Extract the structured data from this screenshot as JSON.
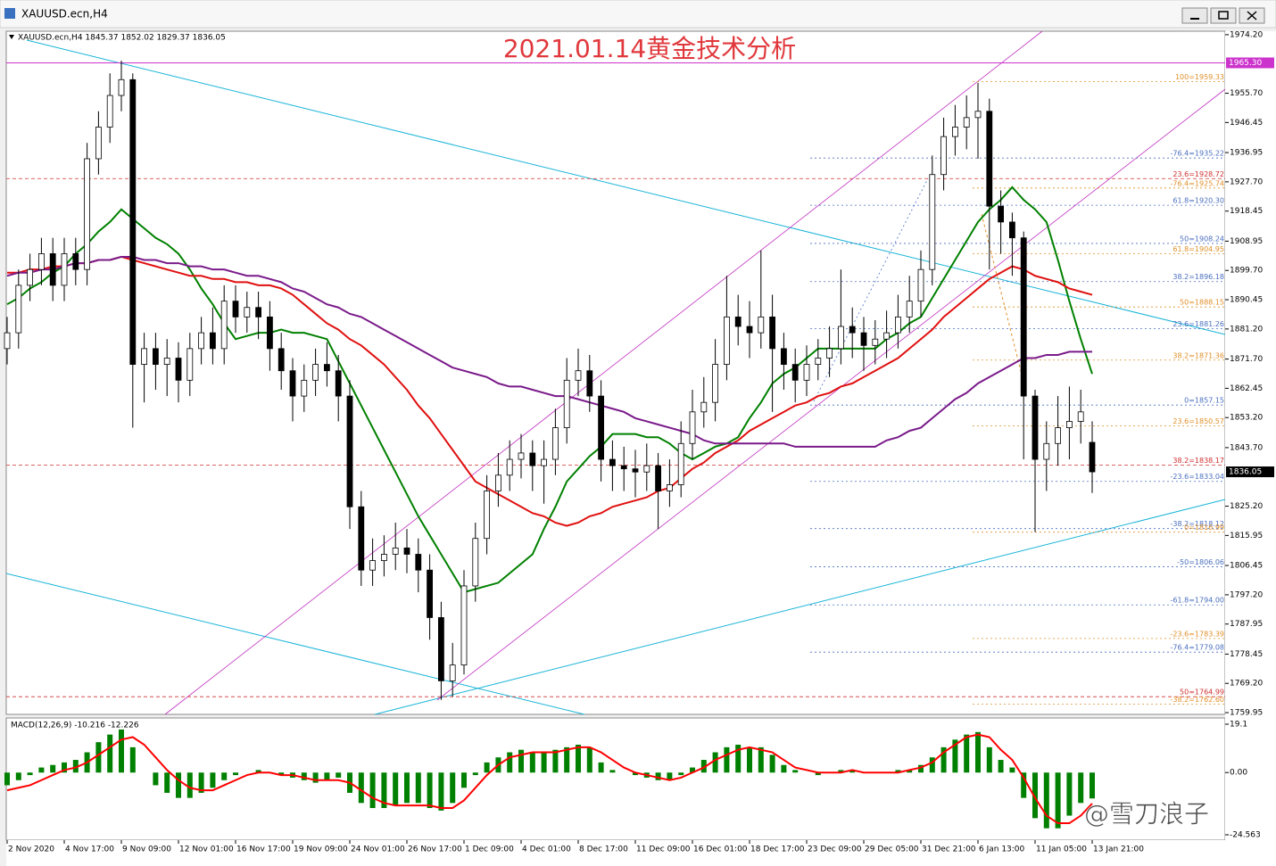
{
  "window": {
    "title": "XAUUSD.ecn,H4"
  },
  "watermark": "@雪刀浪子",
  "chart_data": [
    {
      "type": "candlestick",
      "title": "2021.01.14黄金技术分析",
      "subtitle": "XAUUSD.ecn,H4  1845.37 1852.02 1829.37 1836.05",
      "categories": [
        "2 Nov 2020",
        null,
        null,
        null,
        null,
        "4 Nov 17:00",
        null,
        null,
        null,
        null,
        "9 Nov 09:00",
        null,
        null,
        null,
        null,
        "12 Nov 01:00",
        null,
        null,
        null,
        null,
        "16 Nov 17:00",
        null,
        null,
        null,
        null,
        "19 Nov 09:00",
        null,
        null,
        null,
        null,
        "24 Nov 01:00",
        null,
        null,
        null,
        null,
        "26 Nov 17:00",
        null,
        null,
        null,
        null,
        "1 Dec 09:00",
        null,
        null,
        null,
        null,
        "4 Dec 01:00",
        null,
        null,
        null,
        null,
        "8 Dec 17:00",
        null,
        null,
        null,
        null,
        "11 Dec 09:00",
        null,
        null,
        null,
        null,
        "16 Dec 01:00",
        null,
        null,
        null,
        null,
        "18 Dec 17:00",
        null,
        null,
        null,
        null,
        "23 Dec 09:00",
        null,
        null,
        null,
        null,
        "29 Dec 05:00",
        null,
        null,
        null,
        null,
        "31 Dec 21:00",
        null,
        null,
        null,
        null,
        "6 Jan 13:00",
        null,
        null,
        null,
        null,
        "11 Jan 05:00",
        null,
        null,
        null,
        null,
        "13 Jan 21:00"
      ],
      "open": [
        1875,
        1880,
        1895,
        1900,
        1905,
        1895,
        1905,
        1900,
        1935,
        1945,
        1955,
        1960,
        1870,
        1875,
        1870,
        1872,
        1865,
        1875,
        1880,
        1875,
        1890,
        1885,
        1888,
        1885,
        1875,
        1868,
        1860,
        1865,
        1870,
        1868,
        1860,
        1825,
        1805,
        1808,
        1810,
        1812,
        1810,
        1805,
        1790,
        1770,
        1775,
        1800,
        1815,
        1830,
        1835,
        1840,
        1842,
        1838,
        1840,
        1850,
        1865,
        1868,
        1860,
        1840,
        1838,
        1837,
        1836,
        1838,
        1830,
        1832,
        1845,
        1855,
        1858,
        1870,
        1885,
        1882,
        1880,
        1885,
        1875,
        1870,
        1865,
        1870,
        1872,
        1875,
        1882,
        1880,
        1876,
        1878,
        1880,
        1885,
        1890,
        1900,
        1930,
        1942,
        1945,
        1948,
        1950,
        1920,
        1915,
        1910,
        1860,
        1840,
        1845,
        1850,
        1852,
        1845.37
      ],
      "high": [
        1885,
        1900,
        1905,
        1910,
        1910,
        1910,
        1910,
        1940,
        1950,
        1962,
        1966,
        1962,
        1880,
        1880,
        1878,
        1877,
        1880,
        1885,
        1888,
        1895,
        1895,
        1893,
        1893,
        1890,
        1880,
        1872,
        1870,
        1875,
        1877,
        1873,
        1865,
        1830,
        1815,
        1816,
        1820,
        1818,
        1815,
        1810,
        1795,
        1782,
        1805,
        1820,
        1835,
        1842,
        1846,
        1848,
        1846,
        1846,
        1856,
        1872,
        1875,
        1873,
        1865,
        1846,
        1844,
        1843,
        1845,
        1842,
        1840,
        1852,
        1862,
        1866,
        1878,
        1898,
        1892,
        1890,
        1906,
        1892,
        1880,
        1875,
        1876,
        1878,
        1882,
        1900,
        1888,
        1885,
        1884,
        1887,
        1892,
        1898,
        1906,
        1936,
        1948,
        1952,
        1955,
        1959,
        1954,
        1925,
        1918,
        1912,
        1862,
        1852,
        1860,
        1863,
        1862,
        1852.02
      ],
      "low": [
        1870,
        1875,
        1890,
        1895,
        1890,
        1890,
        1895,
        1895,
        1930,
        1940,
        1950,
        1850,
        1858,
        1862,
        1860,
        1858,
        1860,
        1870,
        1870,
        1870,
        1880,
        1880,
        1878,
        1868,
        1862,
        1852,
        1855,
        1860,
        1863,
        1852,
        1818,
        1800,
        1800,
        1803,
        1805,
        1804,
        1798,
        1783,
        1764,
        1765,
        1772,
        1795,
        1810,
        1825,
        1830,
        1834,
        1830,
        1826,
        1835,
        1845,
        1860,
        1855,
        1833,
        1830,
        1830,
        1828,
        1830,
        1818,
        1825,
        1828,
        1840,
        1850,
        1852,
        1865,
        1876,
        1872,
        1875,
        1855,
        1862,
        1858,
        1860,
        1865,
        1866,
        1870,
        1872,
        1868,
        1870,
        1872,
        1875,
        1880,
        1885,
        1895,
        1925,
        1936,
        1938,
        1935,
        1900,
        1905,
        1898,
        1840,
        1817,
        1830,
        1838,
        1840,
        1845,
        1829.37
      ],
      "close": [
        1880,
        1895,
        1900,
        1905,
        1895,
        1905,
        1900,
        1935,
        1945,
        1955,
        1960,
        1870,
        1875,
        1870,
        1872,
        1865,
        1875,
        1880,
        1875,
        1890,
        1885,
        1888,
        1885,
        1875,
        1868,
        1860,
        1865,
        1870,
        1868,
        1860,
        1825,
        1805,
        1808,
        1810,
        1812,
        1810,
        1805,
        1790,
        1770,
        1775,
        1800,
        1815,
        1830,
        1835,
        1840,
        1842,
        1838,
        1840,
        1850,
        1865,
        1868,
        1860,
        1840,
        1838,
        1837,
        1836,
        1838,
        1830,
        1832,
        1845,
        1855,
        1858,
        1870,
        1885,
        1882,
        1880,
        1885,
        1875,
        1870,
        1865,
        1870,
        1872,
        1875,
        1882,
        1880,
        1876,
        1878,
        1880,
        1885,
        1890,
        1900,
        1930,
        1942,
        1945,
        1948,
        1950,
        1920,
        1915,
        1910,
        1860,
        1840,
        1845,
        1850,
        1852,
        1855,
        1836.05
      ],
      "color_up": "#ffffff",
      "color_down": "#000000",
      "series": [
        {
          "color": "#008000",
          "values": [
            1889,
            1891,
            1894,
            1896,
            1899,
            1901,
            1905,
            1908,
            1912,
            1915,
            1919,
            1916,
            1913,
            1910,
            1908,
            1905,
            1900,
            1894,
            1889,
            1883,
            1878,
            1879,
            1880,
            1880,
            1881,
            1880,
            1880,
            1879,
            1878,
            1871,
            1864,
            1857,
            1850,
            1843,
            1836,
            1829,
            1822,
            1816,
            1810,
            1804,
            1798,
            1799,
            1800,
            1801,
            1804,
            1807,
            1810,
            1818,
            1825,
            1833,
            1837,
            1841,
            1844,
            1848,
            1848,
            1848,
            1847,
            1847,
            1845,
            1842,
            1840,
            1842,
            1844,
            1845,
            1847,
            1853,
            1858,
            1864,
            1867,
            1869,
            1872,
            1875,
            1875,
            1875,
            1875,
            1875,
            1875,
            1878,
            1880,
            1883,
            1885,
            1891,
            1897,
            1903,
            1909,
            1915,
            1919,
            1922,
            1926,
            1922,
            1919,
            1915,
            1903,
            1890,
            1878,
            1867
          ]
        },
        {
          "color": "#e01010",
          "values": [
            1899,
            1899,
            1900,
            1900,
            1901,
            1901,
            1902,
            1902,
            1903,
            1903,
            1904,
            1903,
            1902,
            1901,
            1900,
            1899,
            1898,
            1898,
            1897,
            1897,
            1896,
            1896,
            1895,
            1895,
            1894,
            1892,
            1889,
            1886,
            1883,
            1881,
            1878,
            1876,
            1873,
            1870,
            1866,
            1862,
            1857,
            1853,
            1848,
            1843,
            1838,
            1833,
            1831,
            1829,
            1827,
            1825,
            1823,
            1822,
            1820,
            1819,
            1820,
            1822,
            1823,
            1825,
            1826,
            1827,
            1828,
            1830,
            1831,
            1834,
            1837,
            1839,
            1842,
            1844,
            1846,
            1849,
            1851,
            1853,
            1855,
            1857,
            1858,
            1860,
            1861,
            1863,
            1864,
            1866,
            1868,
            1870,
            1872,
            1875,
            1878,
            1881,
            1885,
            1888,
            1891,
            1894,
            1897,
            1899,
            1901,
            1900,
            1898,
            1897,
            1896,
            1894,
            1893,
            1892
          ]
        },
        {
          "color": "#7a1a8a",
          "values": [
            1898,
            1899,
            1899,
            1900,
            1900,
            1901,
            1902,
            1902,
            1903,
            1903,
            1904,
            1904,
            1903,
            1903,
            1902,
            1902,
            1901,
            1901,
            1900,
            1900,
            1899,
            1898,
            1898,
            1897,
            1896,
            1894,
            1893,
            1891,
            1889,
            1888,
            1886,
            1885,
            1883,
            1881,
            1879,
            1877,
            1875,
            1873,
            1871,
            1869,
            1868,
            1867,
            1866,
            1864,
            1863,
            1863,
            1862,
            1861,
            1860,
            1860,
            1859,
            1858,
            1857,
            1856,
            1855,
            1853,
            1852,
            1851,
            1850,
            1849,
            1848,
            1846,
            1845,
            1845,
            1845,
            1845,
            1845,
            1845,
            1845,
            1844,
            1844,
            1844,
            1844,
            1844,
            1844,
            1844,
            1844,
            1846,
            1847,
            1849,
            1850,
            1853,
            1856,
            1859,
            1861,
            1864,
            1866,
            1868,
            1870,
            1872,
            1872,
            1873,
            1873,
            1874,
            1874,
            1874
          ]
        }
      ],
      "levels": [
        {
          "label": "100=1959.33",
          "value": 1959.33,
          "color": "#e0902a"
        },
        {
          "label": "-76.4=1935.22",
          "value": 1935.22,
          "color": "#4a6fc0"
        },
        {
          "label": "23.6=1928.72",
          "value": 1928.72,
          "color": "#d03030"
        },
        {
          "label": "-76.4=1925.74",
          "value": 1925.74,
          "color": "#e0902a"
        },
        {
          "label": "61.8=1920.30",
          "value": 1920.3,
          "color": "#4a6fc0"
        },
        {
          "label": "50=1908.24",
          "value": 1908.24,
          "color": "#4a6fc0"
        },
        {
          "label": "61.8=1904.95",
          "value": 1904.95,
          "color": "#e0902a"
        },
        {
          "label": "38.2=1896.18",
          "value": 1896.18,
          "color": "#4a6fc0"
        },
        {
          "label": "50=1888.15",
          "value": 1888.15,
          "color": "#e0902a"
        },
        {
          "label": "23.6=1881.26",
          "value": 1881.26,
          "color": "#4a6fc0"
        },
        {
          "label": "38.2=1871.36",
          "value": 1871.36,
          "color": "#e0902a"
        },
        {
          "label": "0=1857.15",
          "value": 1857.15,
          "color": "#4a6fc0"
        },
        {
          "label": "23.6=1850.57",
          "value": 1850.57,
          "color": "#e0902a"
        },
        {
          "label": "38.2=1838.17",
          "value": 1838.17,
          "color": "#d03030"
        },
        {
          "label": "-23.6=1833.04",
          "value": 1833.04,
          "color": "#4a6fc0"
        },
        {
          "label": "-38.2=1818.12",
          "value": 1818.12,
          "color": "#4a6fc0"
        },
        {
          "label": "0=1816.99",
          "value": 1816.99,
          "color": "#e0902a"
        },
        {
          "label": "-50=1806.06",
          "value": 1806.06,
          "color": "#4a6fc0"
        },
        {
          "label": "-61.8=1794.00",
          "value": 1794.0,
          "color": "#4a6fc0"
        },
        {
          "label": "-23.6=1783.39",
          "value": 1783.39,
          "color": "#e0902a"
        },
        {
          "label": "-76.4=1779.08",
          "value": 1779.08,
          "color": "#4a6fc0"
        },
        {
          "label": "50=1764.99",
          "value": 1764.99,
          "color": "#d03030"
        },
        {
          "label": "-38.2=1762.60",
          "value": 1762.6,
          "color": "#e0902a"
        }
      ],
      "price_marker": {
        "value": 1965.3,
        "label": "1965.30",
        "color": "#cc33cc"
      },
      "ylim": [
        1759.4,
        1975.3
      ],
      "yticks": [
        {
          "value": 1974.2,
          "label": "1974.20"
        },
        {
          "value": 1955.7,
          "label": "1955.70"
        },
        1946.45,
        1936.95,
        {
          "value": 1927.7,
          "label": "1927.70"
        },
        1918.45,
        1908.95,
        {
          "value": 1899.7,
          "label": "1899.70"
        },
        1890.45,
        {
          "value": 1881.2,
          "label": "1881.20"
        },
        {
          "value": 1871.7,
          "label": "1871.70"
        },
        1862.45,
        {
          "value": 1853.2,
          "label": "1853.20"
        },
        {
          "value": 1843.7,
          "label": "1843.70"
        },
        {
          "value": 1825.2,
          "label": "1825.20"
        },
        1815.95,
        1806.45,
        {
          "value": 1797.2,
          "label": "1797.20"
        },
        1787.95,
        1778.45,
        {
          "value": 1769.2,
          "label": "1769.20"
        },
        1759.95
      ],
      "grid": false
    },
    {
      "type": "macd",
      "title": "MACD(12,26,9) -10.216 -12.226",
      "values": [
        -5,
        -3,
        -1,
        2,
        3,
        4,
        5,
        8,
        12,
        15,
        17,
        10,
        0,
        -5,
        -8,
        -10,
        -10,
        -8,
        -6,
        -3,
        -1,
        0,
        1,
        0,
        -1,
        -2,
        -3,
        -4,
        -3,
        -2,
        -8,
        -12,
        -14,
        -14,
        -13,
        -12,
        -12,
        -14,
        -15,
        -12,
        -6,
        -1,
        4,
        6,
        8,
        9,
        8,
        8,
        9,
        10,
        11,
        10,
        4,
        1,
        0,
        -1,
        -2,
        -3,
        -3,
        -1,
        2,
        5,
        8,
        10,
        11,
        10,
        10,
        7,
        3,
        1,
        0,
        -1,
        0,
        1,
        1,
        0,
        0,
        0,
        1,
        1,
        3,
        6,
        10,
        13,
        15,
        16,
        10,
        5,
        2,
        -10,
        -18,
        -22,
        -22,
        -17,
        -12,
        -10.216
      ],
      "signal": [
        -7,
        -6,
        -5,
        -3,
        -1,
        1,
        2,
        4,
        7,
        10,
        13,
        14,
        11,
        6,
        1,
        -3,
        -6,
        -7,
        -7,
        -5,
        -3,
        -1,
        0,
        0,
        -1,
        -1,
        -2,
        -3,
        -3,
        -3,
        -4,
        -7,
        -10,
        -12,
        -13,
        -13,
        -13,
        -13,
        -14,
        -14,
        -11,
        -6,
        -1,
        3,
        6,
        7,
        8,
        8,
        8,
        9,
        10,
        10,
        8,
        5,
        2,
        0,
        -1,
        -2,
        -3,
        -2,
        0,
        2,
        5,
        7,
        9,
        10,
        9,
        8,
        5,
        2,
        1,
        0,
        0,
        0,
        1,
        0,
        0,
        0,
        0,
        1,
        2,
        4,
        8,
        11,
        14,
        15,
        14,
        9,
        5,
        -2,
        -10,
        -17,
        -20,
        -20,
        -17,
        -12.226
      ],
      "color": "#008000",
      "signal_color": "#ff0000",
      "ylim": [
        -24.563,
        19.1
      ],
      "yticks": [
        19.1,
        {
          "value": 0,
          "label": "0.00"
        },
        -24.563
      ]
    }
  ]
}
